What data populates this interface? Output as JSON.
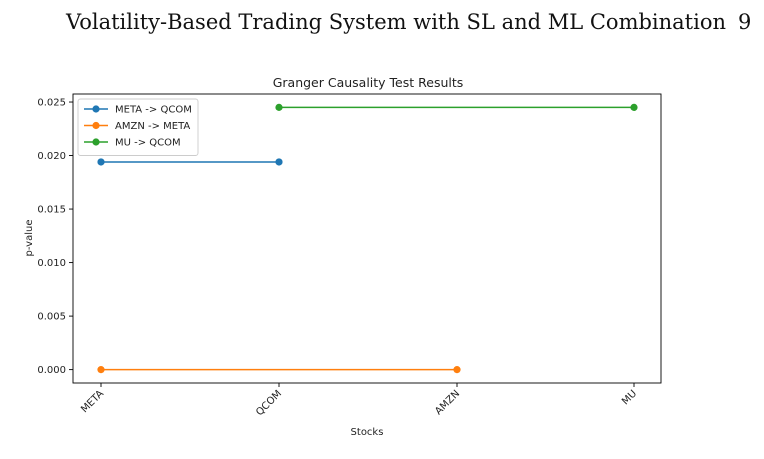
{
  "header": {
    "running_title": "Volatility-Based Trading System with SL and ML Combination",
    "page_number": "9"
  },
  "chart_data": {
    "type": "line",
    "title": "Granger Causality Test Results",
    "xlabel": "Stocks",
    "ylabel": "p-value",
    "categories": [
      "META",
      "QCOM",
      "AMZN",
      "MU"
    ],
    "ylim": [
      -0.00125,
      0.02575
    ],
    "yticks": [
      0.0,
      0.005,
      0.01,
      0.015,
      0.02,
      0.025
    ],
    "ytick_labels": [
      "0.000",
      "0.005",
      "0.010",
      "0.015",
      "0.020",
      "0.025"
    ],
    "grid": false,
    "legend_position": "top-left",
    "series": [
      {
        "name": "META -> QCOM",
        "color": "#1f77b4",
        "x": [
          "META",
          "QCOM"
        ],
        "values": [
          0.0194,
          0.0194
        ]
      },
      {
        "name": "AMZN -> META",
        "color": "#ff7f0e",
        "x": [
          "META",
          "AMZN"
        ],
        "values": [
          0.0,
          0.0
        ]
      },
      {
        "name": "MU -> QCOM",
        "color": "#2ca02c",
        "x": [
          "QCOM",
          "MU"
        ],
        "values": [
          0.0245,
          0.0245
        ]
      }
    ]
  }
}
